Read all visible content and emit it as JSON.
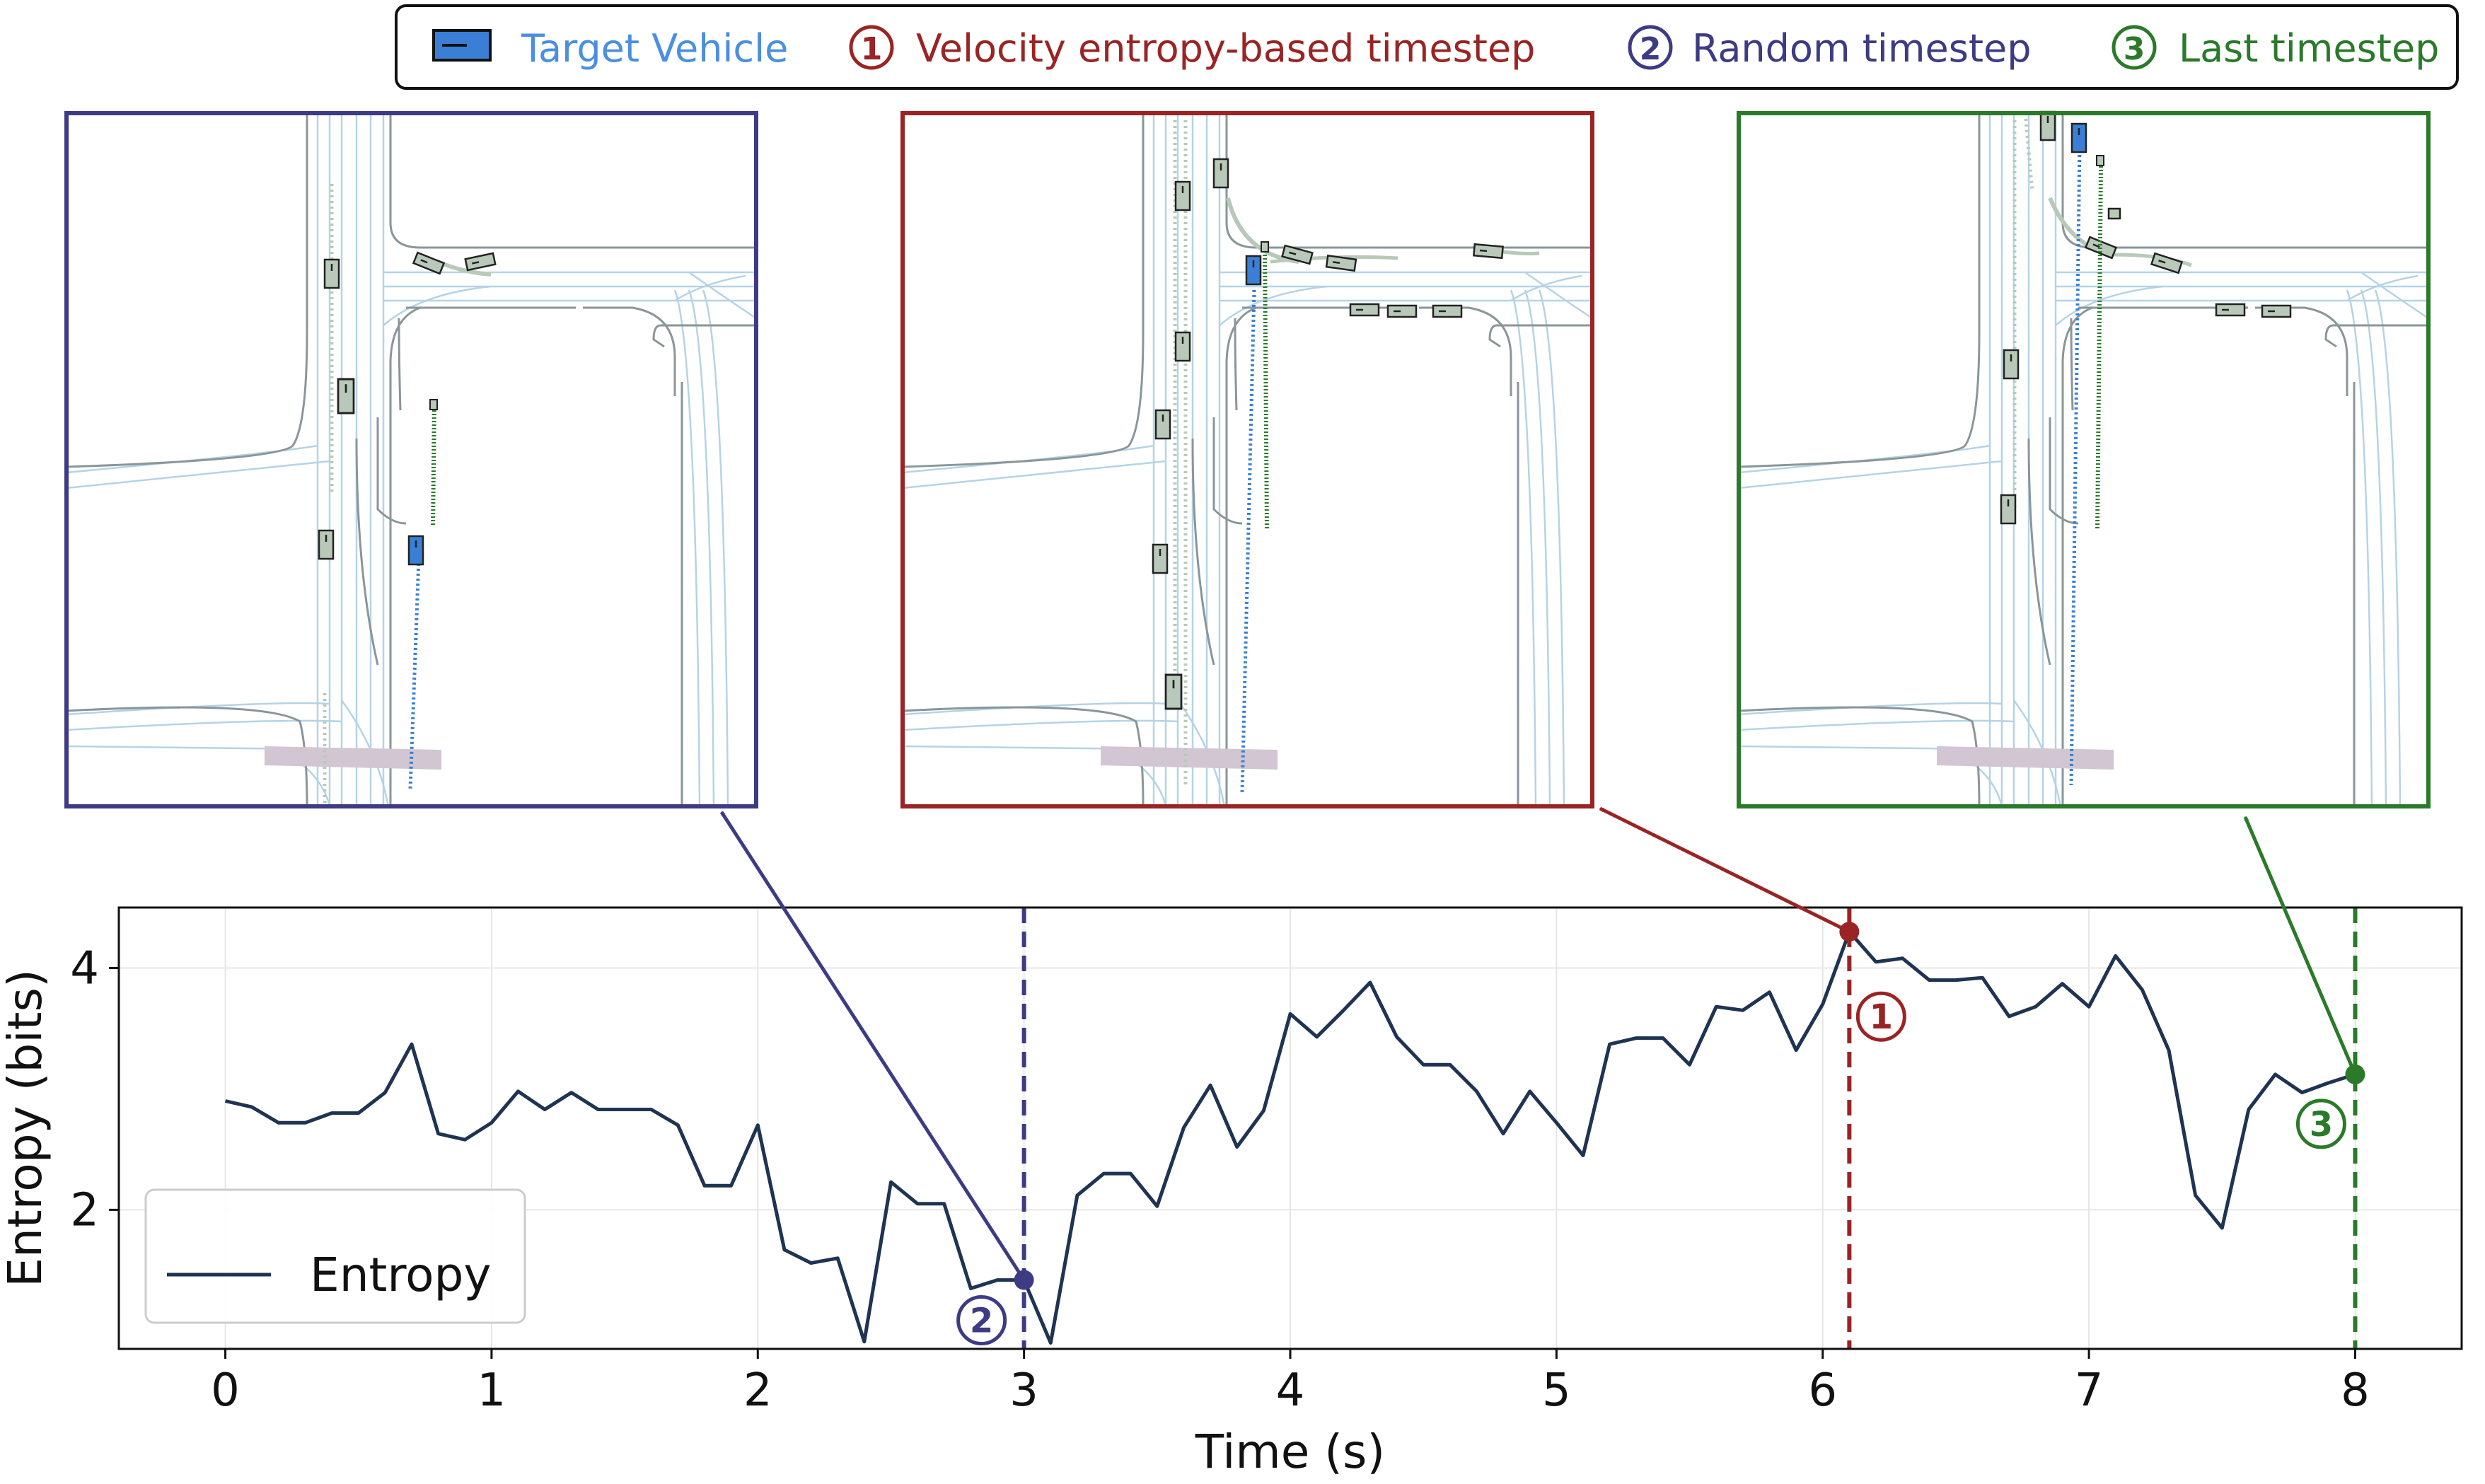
{
  "legend": {
    "target_vehicle": "Target Vehicle",
    "item1_mark": "1",
    "item1_label": "Velocity entropy-based timestep",
    "item2_mark": "2",
    "item2_label": "Random timestep",
    "item3_mark": "3",
    "item3_label": "Last timestep"
  },
  "colors": {
    "navy": "#1f3352",
    "purple": "#3d3b84",
    "red": "#9a2424",
    "green": "#2a7a2a",
    "vehicle_blue": "#3a7fd5",
    "label_blue": "#4a8fe0",
    "lane_light": "#b5d3e6",
    "lane_dark": "#8a9699",
    "agent_fill": "#b9c9b9",
    "crosswalk": "#d1c6d2"
  },
  "chart_data": {
    "type": "line",
    "xlabel": "Time (s)",
    "ylabel": "Entropy (bits)",
    "xlim": [
      -0.4,
      8.4
    ],
    "ylim": [
      0.85,
      4.5
    ],
    "xticks": [
      0,
      1,
      2,
      3,
      4,
      5,
      6,
      7,
      8
    ],
    "yticks": [
      2,
      4
    ],
    "grid": true,
    "legend_position": "bottom-left",
    "series": [
      {
        "name": "Entropy",
        "x": [
          0,
          0.1,
          0.2,
          0.3,
          0.4,
          0.5,
          0.6,
          0.7,
          0.8,
          0.9,
          1.0,
          1.1,
          1.2,
          1.3,
          1.4,
          1.5,
          1.6,
          1.7,
          1.8,
          1.9,
          2.0,
          2.1,
          2.2,
          2.3,
          2.4,
          2.5,
          2.6,
          2.7,
          2.8,
          2.9,
          3.0,
          3.1,
          3.2,
          3.3,
          3.4,
          3.5,
          3.6,
          3.7,
          3.8,
          3.9,
          4.0,
          4.1,
          4.2,
          4.3,
          4.4,
          4.5,
          4.6,
          4.7,
          4.8,
          4.9,
          5.0,
          5.1,
          5.2,
          5.3,
          5.4,
          5.5,
          5.6,
          5.7,
          5.8,
          5.9,
          6.0,
          6.1,
          6.2,
          6.3,
          6.4,
          6.5,
          6.6,
          6.7,
          6.8,
          6.9,
          7.0,
          7.1,
          7.2,
          7.3,
          7.4,
          7.5,
          7.6,
          7.7,
          7.8,
          7.9,
          8.0
        ],
        "y": [
          2.9,
          2.85,
          2.72,
          2.72,
          2.8,
          2.8,
          2.97,
          3.37,
          2.63,
          2.58,
          2.72,
          2.98,
          2.83,
          2.97,
          2.83,
          2.83,
          2.83,
          2.7,
          2.2,
          2.2,
          2.7,
          1.67,
          1.56,
          1.6,
          0.91,
          2.23,
          2.05,
          2.05,
          1.35,
          1.42,
          1.42,
          0.9,
          2.12,
          2.3,
          2.3,
          2.03,
          2.68,
          3.03,
          2.52,
          2.82,
          3.62,
          3.43,
          3.65,
          3.88,
          3.43,
          3.2,
          3.2,
          2.98,
          2.63,
          2.98,
          2.72,
          2.45,
          3.37,
          3.42,
          3.42,
          3.2,
          3.68,
          3.65,
          3.8,
          3.32,
          3.7,
          4.3,
          4.05,
          4.08,
          3.9,
          3.9,
          3.92,
          3.6,
          3.68,
          3.87,
          3.68,
          4.1,
          3.82,
          3.32,
          2.12,
          1.85,
          2.83,
          3.12,
          2.97,
          3.05,
          3.12
        ]
      }
    ],
    "highlights": [
      {
        "label": "1",
        "x": 6.1,
        "y": 4.3
      },
      {
        "label": "2",
        "x": 3.0,
        "y": 1.42
      },
      {
        "label": "3",
        "x": 8.0,
        "y": 3.12
      }
    ]
  }
}
